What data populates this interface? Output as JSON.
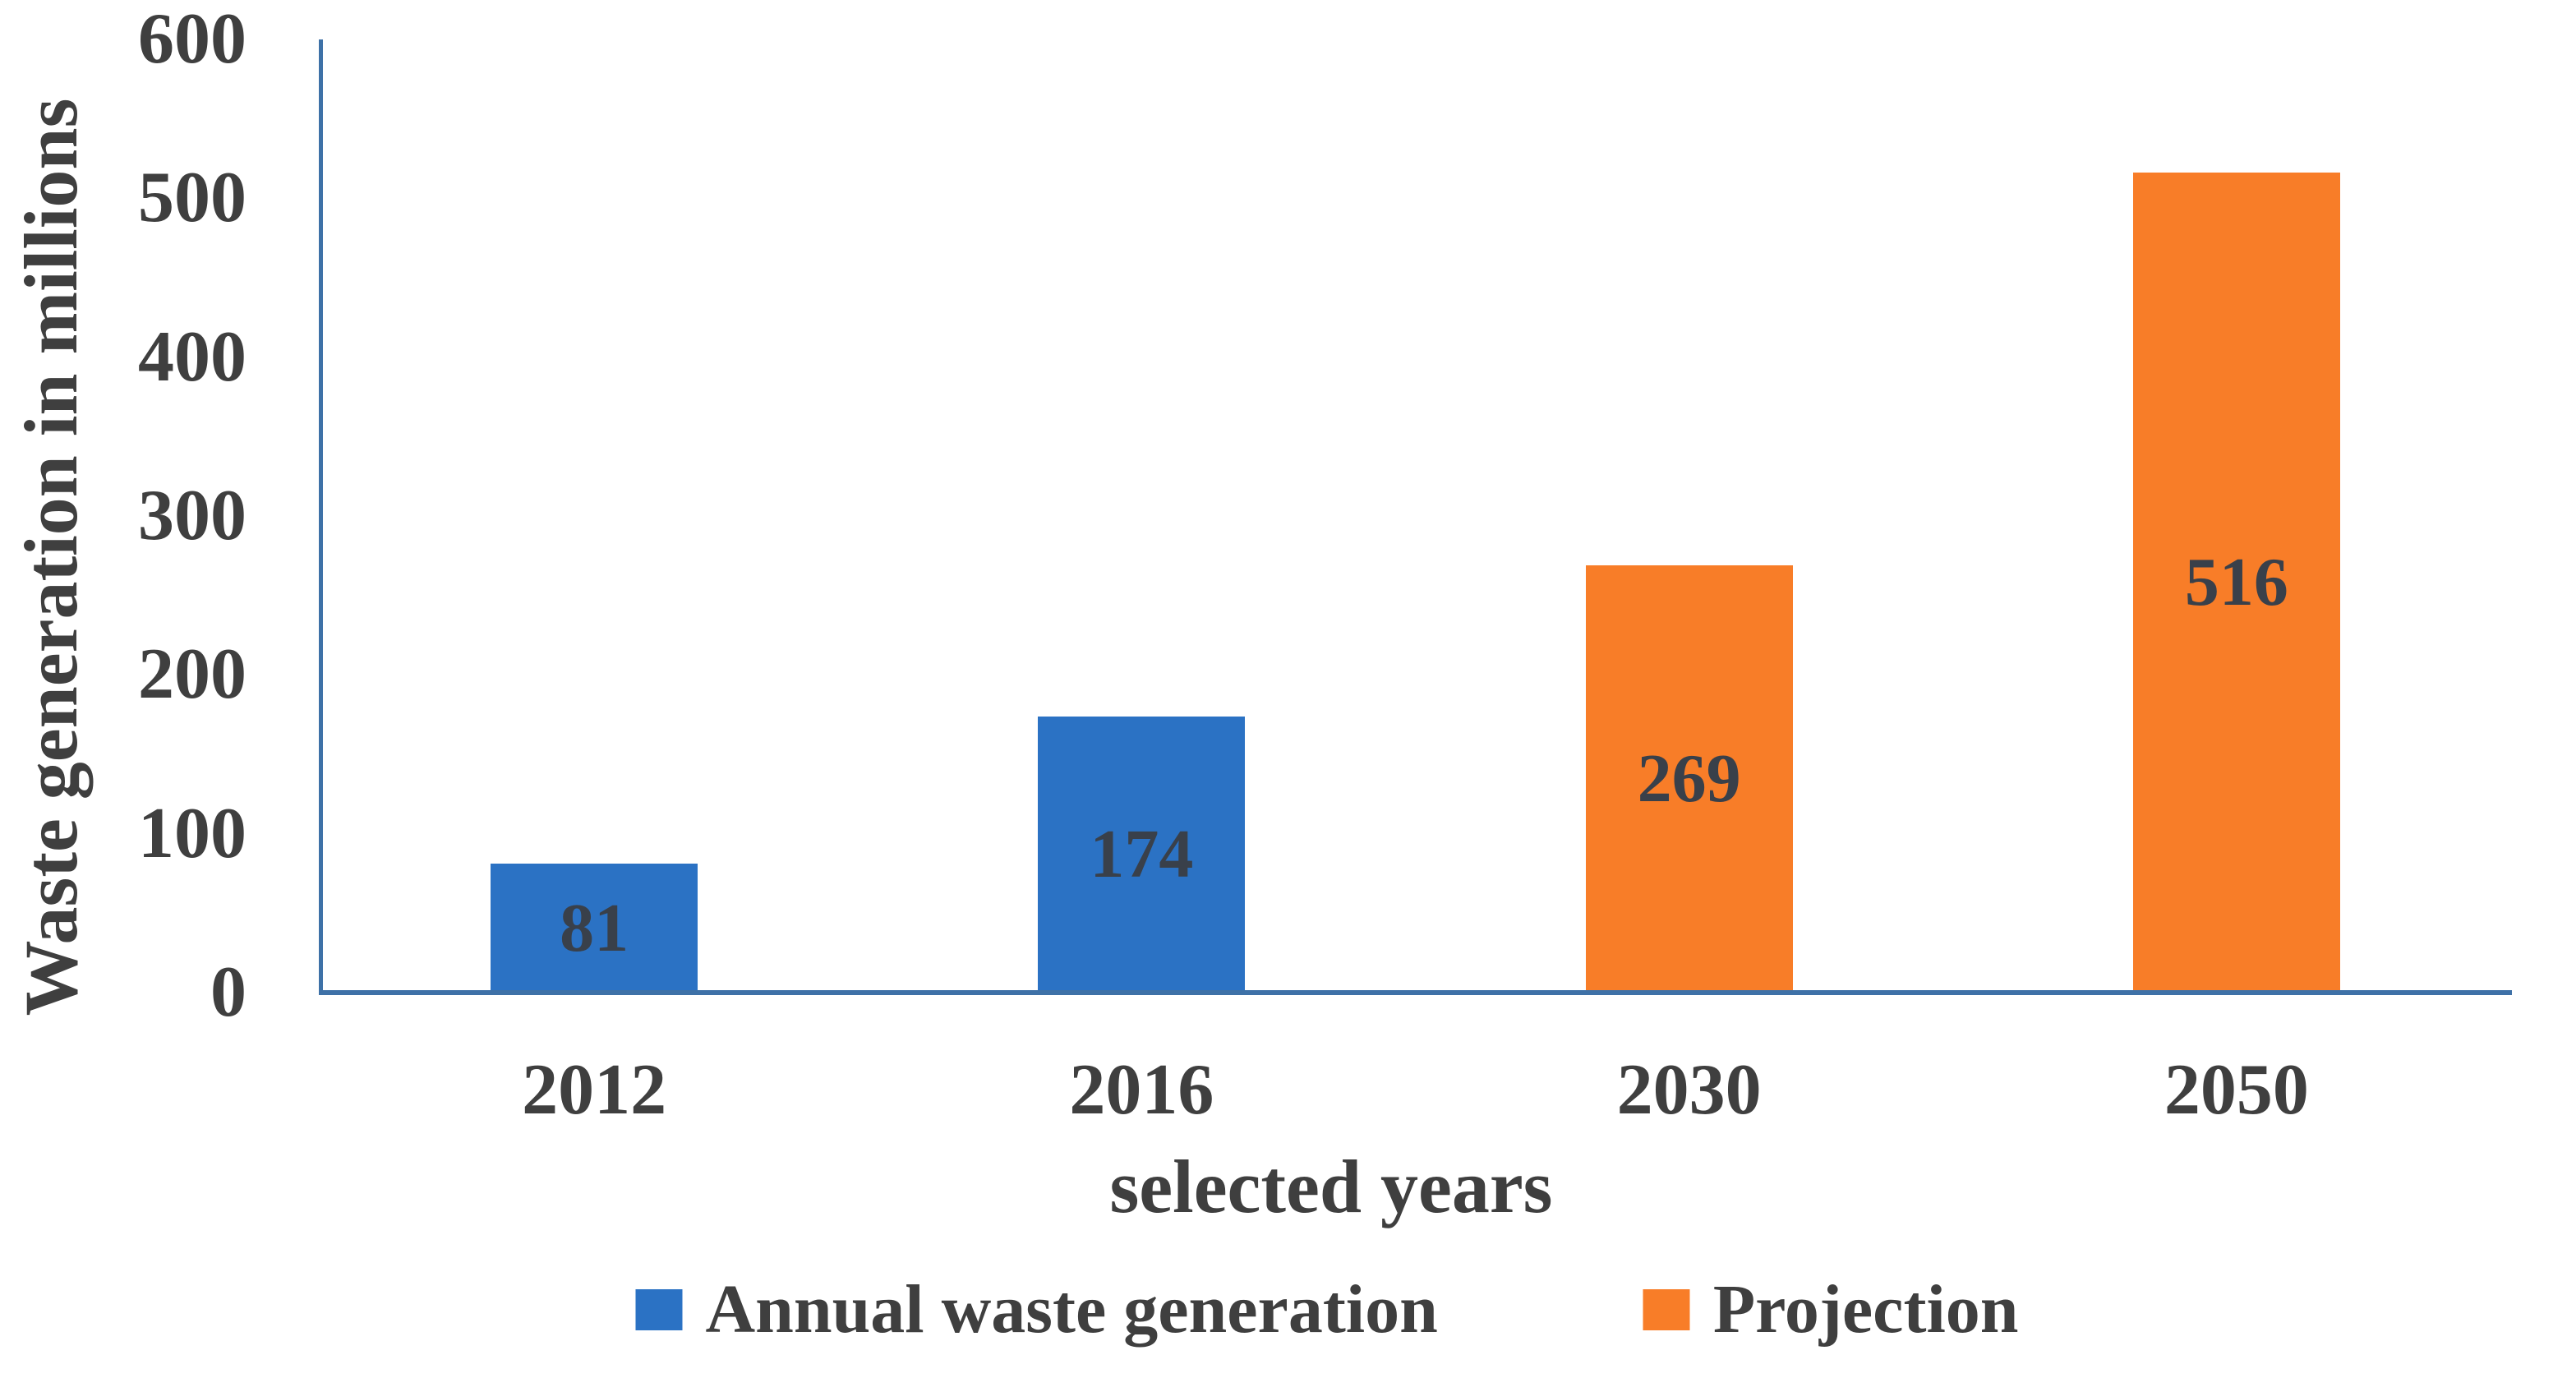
{
  "chart_data": {
    "type": "bar",
    "title": "",
    "categories": [
      "2012",
      "2016",
      "2030",
      "2050"
    ],
    "series": [
      {
        "name": "Annual waste generation",
        "color": "#2B72C4",
        "values": [
          81,
          174,
          null,
          null
        ]
      },
      {
        "name": "Projection",
        "color": "#F87D28",
        "values": [
          null,
          null,
          269,
          516
        ]
      }
    ],
    "xlabel": "selected years",
    "ylabel": "Waste generation in millions",
    "ylim": [
      0,
      600
    ],
    "yticks": [
      0,
      100,
      200,
      300,
      400,
      500,
      600
    ],
    "grid": false,
    "legend_position": "bottom",
    "data_labels": "center",
    "axis_line_color": "#3E71A7",
    "text_color": "#3F3F3F",
    "background_color": "#FFFFFF"
  }
}
